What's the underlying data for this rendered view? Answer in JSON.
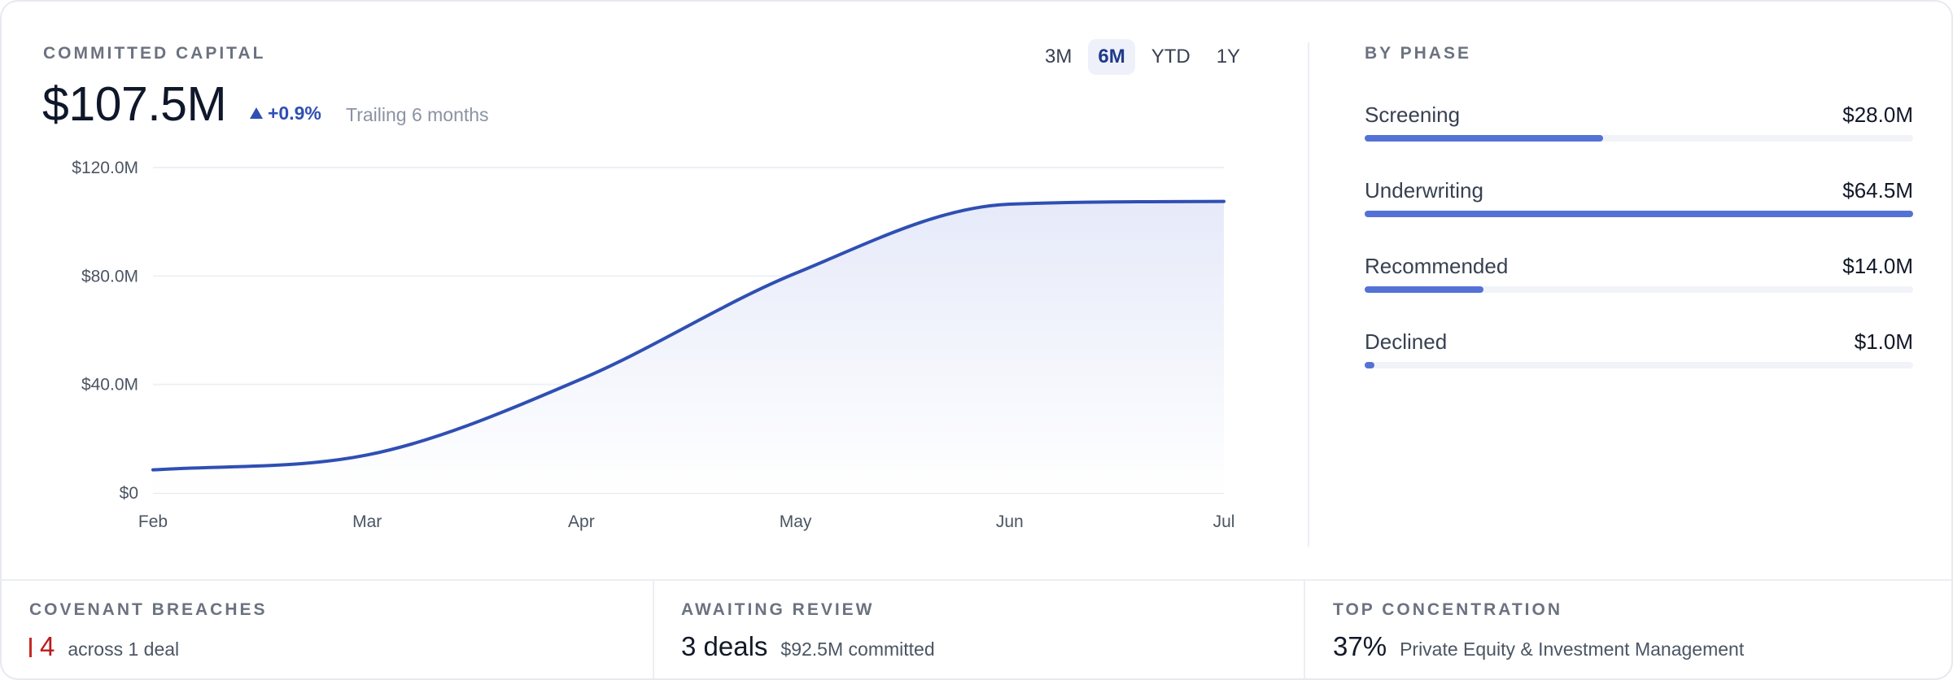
{
  "committed": {
    "title": "COMMITTED CAPITAL",
    "value": "$107.5M",
    "delta": "+0.9%",
    "period": "Trailing 6 months"
  },
  "range_tabs": [
    {
      "label": "3M",
      "active": false
    },
    {
      "label": "6M",
      "active": true
    },
    {
      "label": "YTD",
      "active": false
    },
    {
      "label": "1Y",
      "active": false
    }
  ],
  "chart_data": {
    "type": "area",
    "title": "",
    "xlabel": "",
    "ylabel": "",
    "x": [
      "Feb",
      "Mar",
      "Apr",
      "May",
      "Jun",
      "Jul"
    ],
    "series": [
      {
        "values": [
          8.5,
          14.0,
          42.0,
          81.0,
          106.5,
          107.5
        ]
      }
    ],
    "ylim": [
      0,
      120
    ],
    "yticks": [
      "$0",
      "$40.0M",
      "$80.0M",
      "$120.0M"
    ],
    "ytick_values": [
      0,
      40,
      80,
      120
    ],
    "grid": true,
    "line_color": "#2f4fb3",
    "fill_color": "#e9edfa"
  },
  "phases": {
    "title": "BY PHASE",
    "items": [
      {
        "label": "Screening",
        "value": "$28.0M",
        "amount": 28.0
      },
      {
        "label": "Underwriting",
        "value": "$64.5M",
        "amount": 64.5
      },
      {
        "label": "Recommended",
        "value": "$14.0M",
        "amount": 14.0
      },
      {
        "label": "Declined",
        "value": "$1.0M",
        "amount": 1.0
      }
    ],
    "bar_color": "#5472d6"
  },
  "kpis": {
    "breaches": {
      "title": "COVENANT BREACHES",
      "value": "4",
      "detail": "across 1 deal",
      "accent": "#b91c1c"
    },
    "review": {
      "title": "AWAITING REVIEW",
      "value": "3 deals",
      "detail": "$92.5M committed"
    },
    "concentration": {
      "title": "TOP CONCENTRATION",
      "value": "37%",
      "detail": "Private Equity & Investment Management"
    }
  }
}
